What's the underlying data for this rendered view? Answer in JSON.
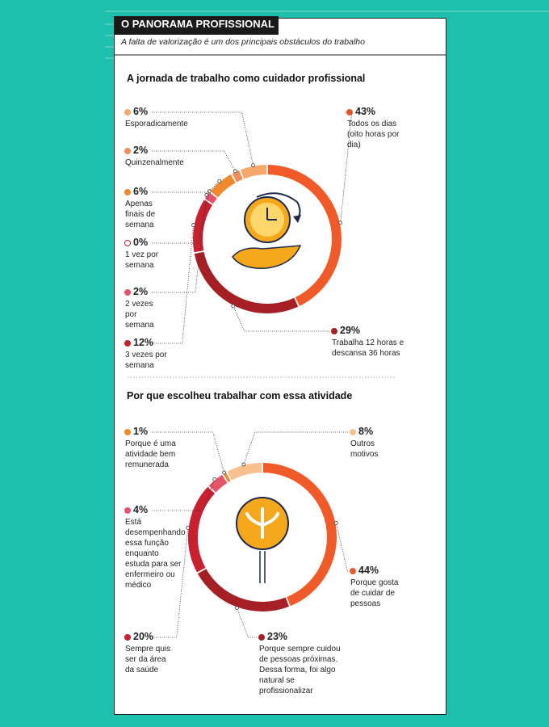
{
  "header": {
    "title": "O PANORAMA PROFISSIONAL",
    "subtitle": "A falta de valorização é um dos principais obstáculos do trabalho"
  },
  "chart_data": [
    {
      "type": "donut",
      "title": "A jornada de trabalho como cuidador profissional",
      "categories": [
        "Todos os dias (oito horas por dia)",
        "Trabalha 12 horas e descansa 36 horas",
        "3 vezes por semana",
        "2 vezes por semana",
        "1 vez por semana",
        "Apenas finais de semana",
        "Quinzenalmente",
        "Esporadicamente"
      ],
      "values": [
        43,
        29,
        12,
        2,
        0,
        6,
        2,
        6
      ],
      "value_labels": [
        "43%",
        "29%",
        "12%",
        "2%",
        "0%",
        "6%",
        "2%",
        "6%"
      ],
      "colors": [
        "#f05a28",
        "#a51f24",
        "#c8202f",
        "#e9536a",
        "#ffffff",
        "#f0892c",
        "#f08b5a",
        "#f6a86b"
      ]
    },
    {
      "type": "donut",
      "title": "Por que escolheu trabalhar com essa atividade",
      "categories": [
        "Porque gosta de cuidar de pessoas",
        "Porque sempre cuidou de pessoas próximas. Dessa forma, foi algo natural se profissionalizar",
        "Sempre quis ser da área da saúde",
        "Está desempenhando essa função enquanto estuda para ser enfermeiro ou médico",
        "Porque é uma atividade bem remunerada",
        "Outros motivos"
      ],
      "values": [
        44,
        23,
        20,
        4,
        1,
        8
      ],
      "value_labels": [
        "44%",
        "23%",
        "20%",
        "4%",
        "1%",
        "8%"
      ],
      "colors": [
        "#f05a28",
        "#a51f24",
        "#c8202f",
        "#e9536a",
        "#f0892c",
        "#f8c08e"
      ]
    }
  ]
}
